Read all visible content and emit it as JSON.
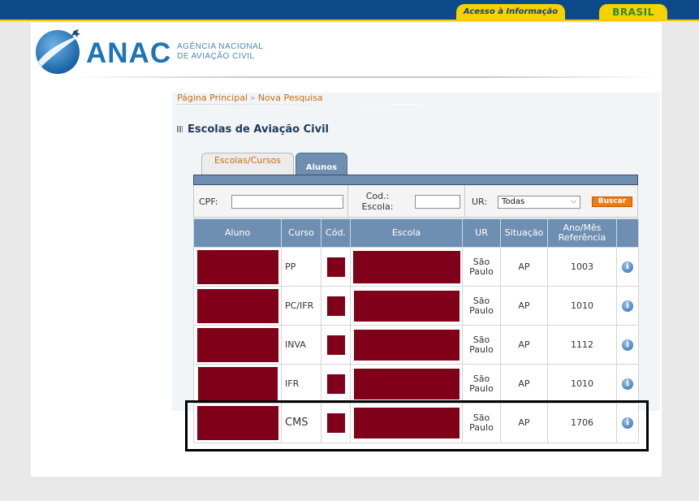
{
  "gov_bar": {
    "acesso_label": "Acesso à Informação",
    "brasil_label": "BRASIL",
    "colors": {
      "bar": "#0c4a8a",
      "accent": "#f6d200"
    }
  },
  "header": {
    "logo_text": "ANAC",
    "logo_sub_line1": "AGÊNCIA NACIONAL",
    "logo_sub_line2": "DE AVIAÇÃO CIVIL",
    "logo_icon": "anac-airplane-globe-icon"
  },
  "breadcrumb": {
    "home": "Página Principal",
    "separator": "»",
    "current": "Nova Pesquisa"
  },
  "page_title": "Escolas de Aviação Civil",
  "tabs": [
    {
      "label": "Escolas/Cursos",
      "active": false
    },
    {
      "label": "Alunos",
      "active": true
    }
  ],
  "filters": {
    "cpf_label": "CPF:",
    "cpf_value": "",
    "cod_escola_label_1": "Cod.:",
    "cod_escola_label_2": "Escola:",
    "cod_escola_value": "",
    "ur_label": "UR:",
    "ur_selected": "Todas",
    "search_button": "Buscar"
  },
  "table": {
    "columns": [
      "Aluno",
      "Curso",
      "Cód.",
      "Escola",
      "UR",
      "Situação",
      "Ano/Mês",
      "Referência"
    ],
    "rows": [
      {
        "curso": "PP",
        "ur_1": "São",
        "ur_2": "Paulo",
        "situacao": "AP",
        "ano_mes": "1003"
      },
      {
        "curso": "PC/IFR",
        "ur_1": "São",
        "ur_2": "Paulo",
        "situacao": "AP",
        "ano_mes": "1010"
      },
      {
        "curso": "INVA",
        "ur_1": "São",
        "ur_2": "Paulo",
        "situacao": "AP",
        "ano_mes": "1112"
      },
      {
        "curso": "IFR",
        "ur_1": "São",
        "ur_2": "Paulo",
        "situacao": "AP",
        "ano_mes": "1010"
      },
      {
        "curso": "CMS",
        "ur_1": "São",
        "ur_2": "Paulo",
        "situacao": "AP",
        "ano_mes": "1706"
      }
    ],
    "info_icon_glyph": "i",
    "redaction_color": "#7f0018"
  }
}
